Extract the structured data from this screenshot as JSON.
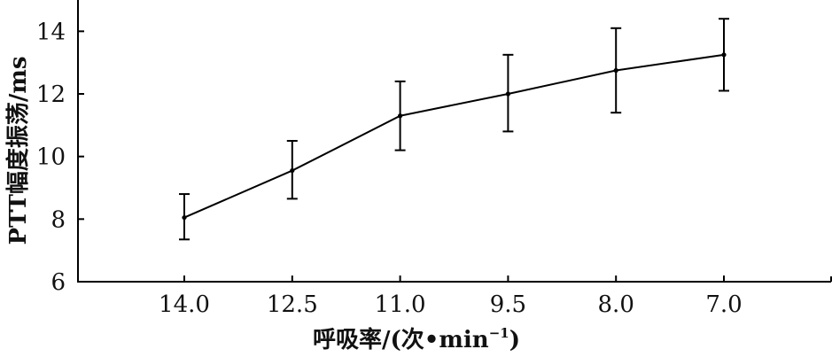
{
  "chart_data": {
    "type": "line",
    "title": "",
    "xlabel": "呼吸率/(次•min⁻¹)",
    "xlabel_main": "呼吸率/(次•min",
    "xlabel_sup": "−1",
    "xlabel_close": ")",
    "ylabel": "PTT幅度振荡/ms",
    "x": [
      "14.0",
      "12.5",
      "11.0",
      "9.5",
      "8.0",
      "7.0"
    ],
    "y": [
      8.05,
      9.55,
      11.3,
      12.0,
      12.75,
      13.25
    ],
    "error_low": [
      7.35,
      8.65,
      10.2,
      10.8,
      11.4,
      12.1
    ],
    "error_high": [
      8.8,
      10.5,
      12.4,
      13.25,
      14.1,
      14.4
    ],
    "yticks": [
      "6",
      "8",
      "10",
      "12",
      "14"
    ],
    "ylim": [
      6,
      15
    ],
    "grid": false,
    "legend": "none",
    "line_color": "#000000"
  }
}
